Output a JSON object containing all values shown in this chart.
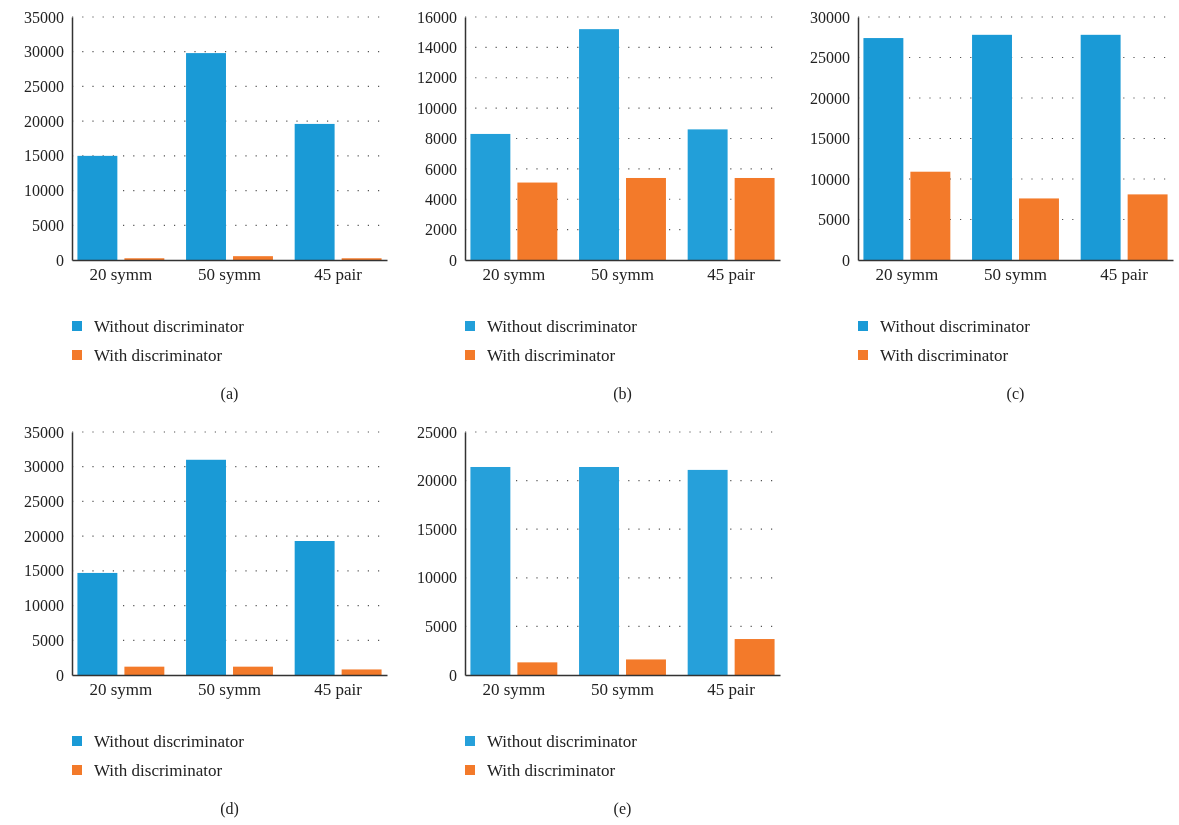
{
  "chart_data": [
    {
      "type": "bar",
      "categories": [
        "20 symm",
        "50 symm",
        "45 pair"
      ],
      "series": [
        {
          "name": "Without discriminator",
          "color": "#1a9ad6",
          "values": [
            15000,
            29800,
            19600
          ]
        },
        {
          "name": "With discriminator",
          "color": "#f37a2a",
          "values": [
            250,
            550,
            250
          ]
        }
      ],
      "ylim": [
        0,
        35000
      ],
      "yticks": [
        0,
        5000,
        10000,
        15000,
        20000,
        25000,
        30000,
        35000
      ],
      "grid": "y",
      "legend": "bottom",
      "annotations": [
        "(a)"
      ]
    },
    {
      "type": "bar",
      "categories": [
        "20 symm",
        "50 symm",
        "45 pair"
      ],
      "series": [
        {
          "name": "Without discriminator",
          "color": "#229fd9",
          "values": [
            8300,
            15200,
            8600
          ]
        },
        {
          "name": "With discriminator",
          "color": "#f37a2a",
          "values": [
            5100,
            5400,
            5400
          ]
        }
      ],
      "ylim": [
        0,
        16000
      ],
      "yticks": [
        0,
        2000,
        4000,
        6000,
        8000,
        10000,
        12000,
        14000,
        16000
      ],
      "grid": "y",
      "legend": "bottom",
      "annotations": [
        "(b)"
      ]
    },
    {
      "type": "bar",
      "categories": [
        "20 symm",
        "50 symm",
        "45 pair"
      ],
      "series": [
        {
          "name": "Without discriminator",
          "color": "#1a9ad6",
          "values": [
            27400,
            27800,
            27800
          ]
        },
        {
          "name": "With discriminator",
          "color": "#f37a2a",
          "values": [
            10900,
            7600,
            8100
          ]
        }
      ],
      "ylim": [
        0,
        30000
      ],
      "yticks": [
        0,
        5000,
        10000,
        15000,
        20000,
        25000,
        30000
      ],
      "grid": "y",
      "legend": "bottom",
      "annotations": [
        "(c)"
      ]
    },
    {
      "type": "bar",
      "categories": [
        "20 symm",
        "50 symm",
        "45 pair"
      ],
      "series": [
        {
          "name": "Without discriminator",
          "color": "#1a9ad6",
          "values": [
            14700,
            31000,
            19300
          ]
        },
        {
          "name": "With discriminator",
          "color": "#f37a2a",
          "values": [
            1200,
            1200,
            800
          ]
        }
      ],
      "ylim": [
        0,
        35000
      ],
      "yticks": [
        0,
        5000,
        10000,
        15000,
        20000,
        25000,
        30000,
        35000
      ],
      "grid": "y",
      "legend": "bottom",
      "annotations": [
        "(d)"
      ]
    },
    {
      "type": "bar",
      "categories": [
        "20 symm",
        "50 symm",
        "45 pair"
      ],
      "series": [
        {
          "name": "Without discriminator",
          "color": "#26a0da",
          "values": [
            21400,
            21400,
            21100
          ]
        },
        {
          "name": "With discriminator",
          "color": "#f37a2a",
          "values": [
            1300,
            1600,
            3700
          ]
        }
      ],
      "ylim": [
        0,
        25000
      ],
      "yticks": [
        0,
        5000,
        10000,
        15000,
        20000,
        25000
      ],
      "grid": "y",
      "legend": "bottom",
      "annotations": [
        "(e)"
      ]
    }
  ]
}
